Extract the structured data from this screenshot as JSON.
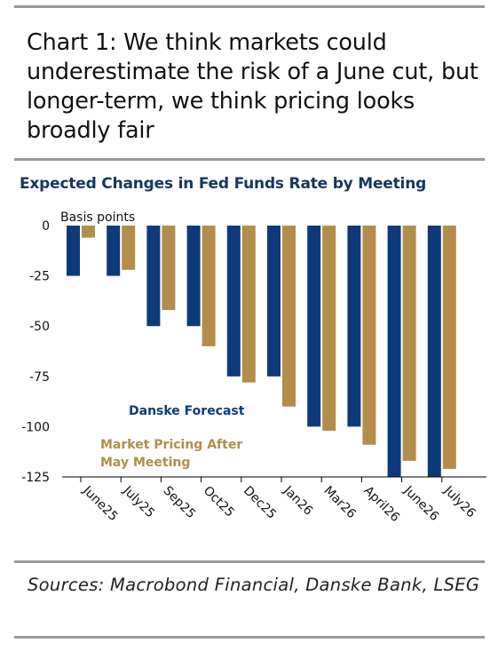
{
  "headline": "Chart 1: We think markets could underestimate the risk of a June cut, but longer-term, we think pricing looks broadly fair",
  "sources": "Sources: Macrobond Financial, Danske Bank, LSEG",
  "colors": {
    "danske": "#0d3a7a",
    "market": "#b38d49",
    "title": "#16365c",
    "rule": "#9a9a9a"
  },
  "chart_data": {
    "type": "bar",
    "title": "Expected Changes in Fed Funds Rate by Meeting",
    "ylabel": "Basis points",
    "xlabel": "",
    "categories": [
      "June25",
      "July25",
      "Sep25",
      "Oct25",
      "Dec25",
      "Jan26",
      "Mar26",
      "April26",
      "June26",
      "July26"
    ],
    "series": [
      {
        "name": "Danske Forecast",
        "color": "#0d3a7a",
        "values": [
          -25,
          -25,
          -50,
          -50,
          -75,
          -75,
          -100,
          -100,
          -125,
          -125
        ]
      },
      {
        "name": "Market Pricing After May Meeting",
        "color": "#b38d49",
        "values": [
          -6,
          -22,
          -42,
          -60,
          -78,
          -90,
          -102,
          -109,
          -117,
          -121
        ]
      }
    ],
    "yticks": [
      0,
      -25,
      -50,
      -75,
      -100,
      -125
    ],
    "ylim": [
      -125,
      0
    ],
    "grid": false,
    "legend_placement": "inside-center-left"
  }
}
